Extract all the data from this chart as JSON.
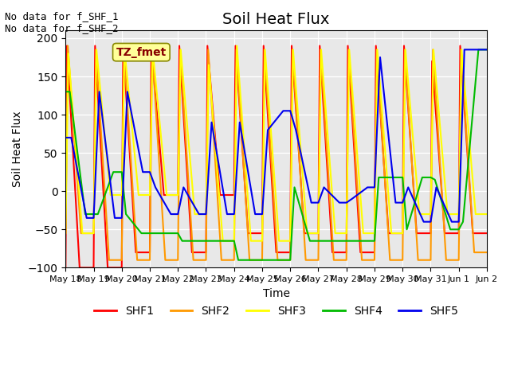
{
  "title": "Soil Heat Flux",
  "ylabel": "Soil Heat Flux",
  "xlabel": "Time",
  "ylim": [
    -100,
    210
  ],
  "yticks": [
    -100,
    -50,
    0,
    50,
    100,
    150,
    200
  ],
  "annotation_text": "No data for f_SHF_1\nNo data for f_SHF_2",
  "legend_box_text": "TZ_fmet",
  "legend_box_color": "#FFFF99",
  "legend_box_text_color": "#880000",
  "background_color": "#E8E8E8",
  "series_colors": {
    "SHF1": "#FF0000",
    "SHF2": "#FF9900",
    "SHF3": "#FFFF00",
    "SHF4": "#00BB00",
    "SHF5": "#0000EE"
  },
  "x_tick_labels": [
    "May 18",
    "May 19",
    "May 20",
    "May 21",
    "May 22",
    "May 23",
    "May 24",
    "May 25",
    "May 26",
    "May 27",
    "May 28",
    "May 29",
    "May 30",
    "May 31",
    "Jun 1",
    "Jun 2"
  ],
  "SHF1": {
    "x": [
      0.0,
      0.05,
      0.5,
      1.0,
      1.05,
      1.5,
      2.0,
      2.05,
      2.5,
      3.0,
      3.05,
      3.5,
      4.0,
      4.05,
      4.5,
      5.0,
      5.05,
      5.5,
      6.0,
      6.05,
      6.5,
      7.0,
      7.05,
      7.5,
      8.0,
      8.05,
      8.5,
      9.0,
      9.05,
      9.5,
      10.0,
      10.05,
      10.5,
      11.0,
      11.05,
      11.5,
      12.0,
      12.05,
      12.5,
      13.0,
      13.05,
      13.5,
      14.0,
      14.05,
      14.5,
      15.0
    ],
    "y": [
      -100,
      190,
      -100,
      -100,
      190,
      -100,
      -100,
      190,
      -80,
      -80,
      190,
      -5,
      -5,
      190,
      -80,
      -80,
      190,
      -5,
      -5,
      190,
      -55,
      -55,
      190,
      -80,
      -80,
      190,
      -55,
      -55,
      190,
      -80,
      -80,
      190,
      -80,
      -80,
      190,
      -55,
      -55,
      190,
      -55,
      -55,
      170,
      -55,
      -55,
      190,
      -55,
      -55
    ]
  },
  "SHF2": {
    "x": [
      0.0,
      0.08,
      0.55,
      1.0,
      1.08,
      1.55,
      2.0,
      2.08,
      2.55,
      3.0,
      3.08,
      3.55,
      4.0,
      4.08,
      4.55,
      5.0,
      5.08,
      5.55,
      6.0,
      6.08,
      6.55,
      7.0,
      7.08,
      7.55,
      8.0,
      8.08,
      8.55,
      9.0,
      9.08,
      9.55,
      10.0,
      10.08,
      10.55,
      11.0,
      11.08,
      11.55,
      12.0,
      12.08,
      12.55,
      13.0,
      13.08,
      13.55,
      14.0,
      14.08,
      14.55,
      15.0
    ],
    "y": [
      -55,
      190,
      -55,
      -55,
      185,
      -90,
      -90,
      185,
      -90,
      -90,
      185,
      -90,
      -90,
      185,
      -90,
      -90,
      185,
      -90,
      -90,
      185,
      -90,
      -90,
      185,
      -90,
      -90,
      185,
      -90,
      -90,
      185,
      -90,
      -90,
      185,
      -90,
      -90,
      185,
      -90,
      -90,
      185,
      -90,
      -90,
      185,
      -90,
      -90,
      185,
      -80,
      -80
    ]
  },
  "SHF3": {
    "x": [
      0.0,
      0.1,
      0.6,
      1.0,
      1.1,
      1.6,
      2.0,
      2.1,
      2.6,
      3.0,
      3.1,
      3.6,
      4.0,
      4.1,
      4.6,
      5.0,
      5.1,
      5.6,
      6.0,
      6.1,
      6.6,
      7.0,
      7.1,
      7.6,
      8.0,
      8.1,
      8.6,
      9.0,
      9.1,
      9.6,
      10.0,
      10.1,
      10.6,
      11.0,
      11.1,
      11.6,
      12.0,
      12.1,
      12.6,
      13.0,
      13.1,
      13.6,
      14.0,
      14.1,
      14.6,
      15.0
    ],
    "y": [
      -55,
      180,
      -55,
      -55,
      185,
      -5,
      -5,
      185,
      -5,
      -5,
      185,
      -5,
      -5,
      185,
      -30,
      -30,
      165,
      -65,
      -65,
      190,
      -65,
      -65,
      185,
      -65,
      -65,
      185,
      -55,
      -55,
      185,
      -55,
      -55,
      185,
      -55,
      -55,
      185,
      -55,
      -55,
      185,
      -30,
      -30,
      185,
      -30,
      -30,
      185,
      -30,
      -30
    ]
  },
  "SHF4": {
    "x": [
      0.0,
      0.15,
      0.7,
      1.0,
      1.15,
      1.7,
      2.0,
      2.15,
      2.7,
      3.0,
      3.15,
      3.7,
      4.0,
      4.15,
      4.7,
      5.0,
      5.15,
      5.7,
      6.0,
      6.15,
      6.7,
      7.0,
      7.15,
      7.7,
      8.0,
      8.15,
      8.7,
      9.0,
      9.15,
      9.7,
      10.0,
      10.15,
      10.7,
      11.0,
      11.15,
      11.7,
      12.0,
      12.15,
      12.7,
      13.0,
      13.15,
      13.7,
      14.0,
      14.15,
      14.7,
      15.0
    ],
    "y": [
      130,
      130,
      -30,
      -30,
      -30,
      25,
      25,
      -30,
      -55,
      -55,
      -55,
      -55,
      -55,
      -65,
      -65,
      -65,
      -65,
      -65,
      -65,
      -90,
      -90,
      -90,
      -90,
      -90,
      -90,
      5,
      -65,
      -65,
      -65,
      -65,
      -65,
      -65,
      -65,
      -65,
      18,
      18,
      18,
      -50,
      18,
      18,
      15,
      -50,
      -50,
      -40,
      185,
      185
    ]
  },
  "SHF5": {
    "x": [
      0.0,
      0.2,
      0.75,
      1.0,
      1.2,
      1.75,
      2.0,
      2.2,
      2.75,
      3.0,
      3.2,
      3.75,
      4.0,
      4.2,
      4.75,
      5.0,
      5.2,
      5.75,
      6.0,
      6.2,
      6.75,
      7.0,
      7.2,
      7.75,
      8.0,
      8.2,
      8.75,
      9.0,
      9.2,
      9.75,
      10.0,
      10.2,
      10.75,
      11.0,
      11.2,
      11.75,
      12.0,
      12.2,
      12.75,
      13.0,
      13.2,
      13.75,
      14.0,
      14.2,
      14.75,
      15.0
    ],
    "y": [
      70,
      70,
      -35,
      -35,
      130,
      -35,
      -35,
      130,
      25,
      25,
      5,
      -30,
      -30,
      5,
      -30,
      -30,
      90,
      -30,
      -30,
      90,
      -30,
      -30,
      80,
      105,
      105,
      80,
      -15,
      -15,
      5,
      -15,
      -15,
      -10,
      5,
      5,
      175,
      -15,
      -15,
      5,
      -40,
      -40,
      5,
      -40,
      -40,
      185,
      185,
      185
    ]
  }
}
